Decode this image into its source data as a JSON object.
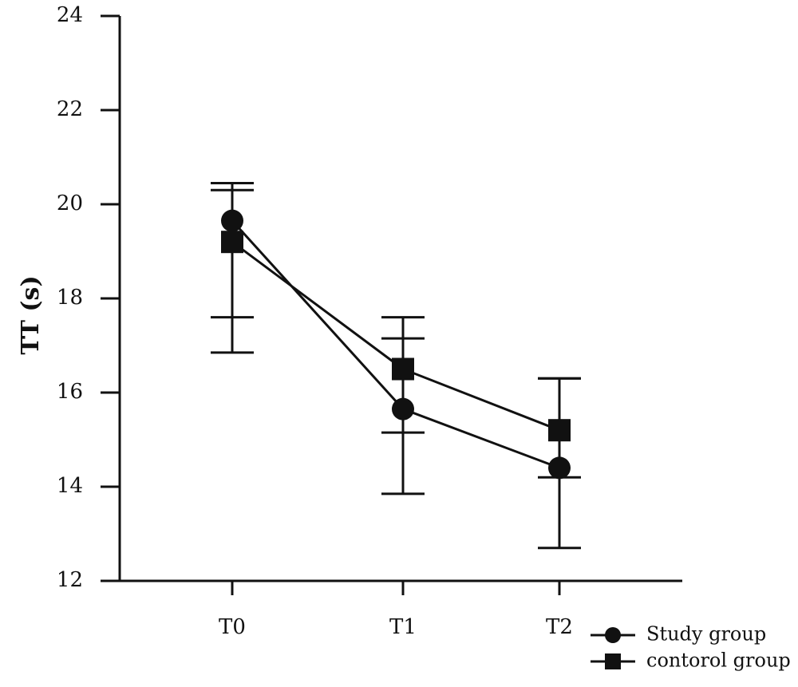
{
  "chart_data": {
    "type": "line",
    "categories": [
      "T0",
      "T1",
      "T2"
    ],
    "ylabel": "TT (s)",
    "xlabel": "",
    "ylim": [
      12,
      24
    ],
    "yticks": [
      "12",
      "14",
      "16",
      "18",
      "20",
      "22",
      "24"
    ],
    "grid": false,
    "legend_position": "bottom-right",
    "series": [
      {
        "name": "Study group",
        "marker": "circle",
        "values": [
          19.65,
          15.65,
          14.4
        ],
        "error_low": [
          16.85,
          13.85,
          12.7
        ],
        "error_high": [
          20.45,
          17.15,
          16.3
        ]
      },
      {
        "name": "contorol group",
        "marker": "square",
        "values": [
          19.2,
          16.5,
          15.2
        ],
        "error_low": [
          17.6,
          15.15,
          14.2
        ],
        "error_high": [
          20.3,
          17.6,
          16.3
        ]
      }
    ],
    "colors": {
      "ink": "#111111",
      "background": "#ffffff"
    }
  }
}
